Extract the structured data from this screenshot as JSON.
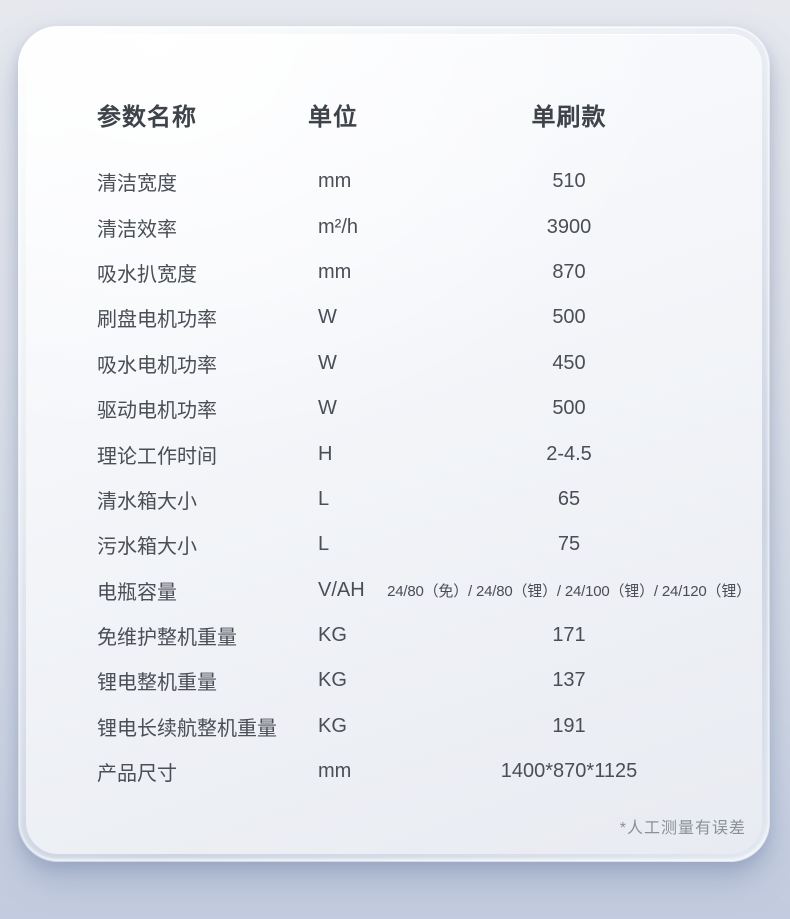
{
  "table": {
    "headers": {
      "name": "参数名称",
      "unit": "单位",
      "value": "单刷款"
    },
    "rows": [
      {
        "name": "清洁宽度",
        "unit": "mm",
        "value": "510"
      },
      {
        "name": "清洁效率",
        "unit": "m²/h",
        "value": "3900"
      },
      {
        "name": "吸水扒宽度",
        "unit": "mm",
        "value": "870"
      },
      {
        "name": "刷盘电机功率",
        "unit": "W",
        "value": "500"
      },
      {
        "name": "吸水电机功率",
        "unit": "W",
        "value": "450"
      },
      {
        "name": "驱动电机功率",
        "unit": "W",
        "value": "500"
      },
      {
        "name": "理论工作时间",
        "unit": "H",
        "value": "2-4.5"
      },
      {
        "name": "清水箱大小",
        "unit": "L",
        "value": "65"
      },
      {
        "name": "污水箱大小",
        "unit": "L",
        "value": "75"
      },
      {
        "name": "电瓶容量",
        "unit": "V/AH",
        "value": "24/80（免）/ 24/80（锂）/ 24/100（锂）/ 24/120（锂）"
      },
      {
        "name": "免维护整机重量",
        "unit": "KG",
        "value": "171"
      },
      {
        "name": "锂电整机重量",
        "unit": "KG",
        "value": "137"
      },
      {
        "name": "锂电长续航整机重量",
        "unit": "KG",
        "value": "191"
      },
      {
        "name": "产品尺寸",
        "unit": "mm",
        "value": "1400*870*1125"
      }
    ]
  },
  "footnote": "*人工测量有误差",
  "colors": {
    "page_bg_top": "#e6e8ee",
    "page_bg_bottom": "#c2cbdf",
    "card_bg": "#f3f5f9",
    "header_text": "#3e4249",
    "body_text": "#4a4e55",
    "footnote_text": "#8c9099"
  }
}
